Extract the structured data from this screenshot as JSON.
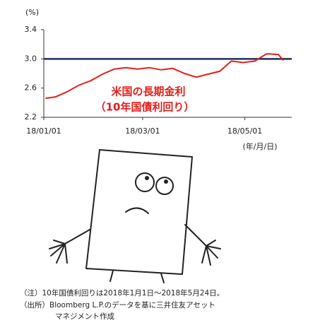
{
  "chart_data": {
    "type": "line",
    "y_unit": "(%)",
    "annotation": [
      "米国の長期金利",
      "（10年国債利回り）"
    ],
    "x_unit": "(年/月/日)",
    "x": [
      "18/01/02",
      "18/01/08",
      "18/01/15",
      "18/01/22",
      "18/01/29",
      "18/02/05",
      "18/02/12",
      "18/02/19",
      "18/02/26",
      "18/03/05",
      "18/03/12",
      "18/03/19",
      "18/03/26",
      "18/04/02",
      "18/04/09",
      "18/04/16",
      "18/04/23",
      "18/04/30",
      "18/05/07",
      "18/05/14",
      "18/05/21",
      "18/05/24"
    ],
    "values": [
      2.46,
      2.48,
      2.55,
      2.64,
      2.7,
      2.79,
      2.86,
      2.88,
      2.86,
      2.88,
      2.85,
      2.87,
      2.8,
      2.75,
      2.79,
      2.83,
      2.97,
      2.95,
      2.97,
      3.07,
      3.06,
      2.98
    ],
    "color": "#e0201b",
    "reference_line": {
      "value": 3,
      "color": "#1f2d5a"
    },
    "xlim": [
      "18/01/01",
      "18/05/29"
    ],
    "xticks": [
      "18/01/01",
      "18/03/01",
      "18/05/01"
    ],
    "ylim": [
      2.2,
      3.4
    ],
    "yticks": [
      2.2,
      2.6,
      {
        "value": 3,
        "label": "3.0"
      },
      3.4
    ],
    "notes": [
      "（注）10年国債利回りは2018年1月1日～2018年5月24日。",
      "（出所）Bloomberg L.P.のデータを基に三井住友アセット",
      "マネジメント作成"
    ]
  }
}
